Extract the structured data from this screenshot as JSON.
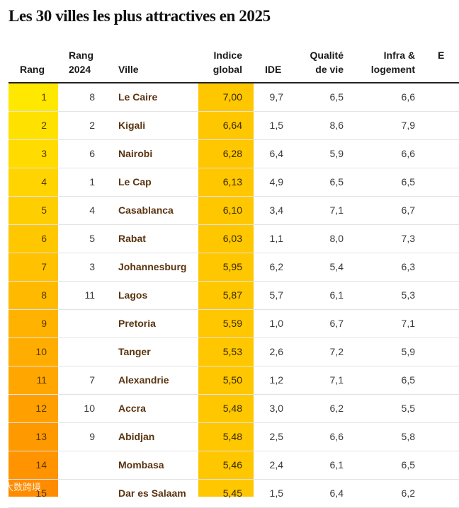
{
  "title": "Les 30 villes les plus attractives en 2025",
  "watermark": "大数跨境",
  "columns": {
    "rang": "Rang",
    "rang2024_line1": "Rang",
    "rang2024_line2": "2024",
    "ville": "Ville",
    "indice_line1": "Indice",
    "indice_line2": "global",
    "ide": "IDE",
    "qualite_line1": "Qualité",
    "qualite_line2": "de vie",
    "infra_line1": "Infra &",
    "infra_line2": "logement",
    "next_col": "E"
  },
  "colors": {
    "rang_gradient_start": "#ffe800",
    "rang_gradient_end": "#ff8c00",
    "indice_column": "#ffc700"
  },
  "chart_data": {
    "type": "table",
    "title": "Les 30 villes les plus attractives en 2025",
    "headers": [
      "Rang",
      "Rang 2024",
      "Ville",
      "Indice global",
      "IDE",
      "Qualité de vie",
      "Infra & logement"
    ],
    "rows": [
      {
        "rang": "1",
        "rang2024": "8",
        "ville": "Le Caire",
        "indice": "7,00",
        "ide": "9,7",
        "qualite": "6,5",
        "infra": "6,6"
      },
      {
        "rang": "2",
        "rang2024": "2",
        "ville": "Kigali",
        "indice": "6,64",
        "ide": "1,5",
        "qualite": "8,6",
        "infra": "7,9"
      },
      {
        "rang": "3",
        "rang2024": "6",
        "ville": "Nairobi",
        "indice": "6,28",
        "ide": "6,4",
        "qualite": "5,9",
        "infra": "6,6"
      },
      {
        "rang": "4",
        "rang2024": "1",
        "ville": "Le Cap",
        "indice": "6,13",
        "ide": "4,9",
        "qualite": "6,5",
        "infra": "6,5"
      },
      {
        "rang": "5",
        "rang2024": "4",
        "ville": "Casablanca",
        "indice": "6,10",
        "ide": "3,4",
        "qualite": "7,1",
        "infra": "6,7"
      },
      {
        "rang": "6",
        "rang2024": "5",
        "ville": "Rabat",
        "indice": "6,03",
        "ide": "1,1",
        "qualite": "8,0",
        "infra": "7,3"
      },
      {
        "rang": "7",
        "rang2024": "3",
        "ville": "Johannesburg",
        "indice": "5,95",
        "ide": "6,2",
        "qualite": "5,4",
        "infra": "6,3"
      },
      {
        "rang": "8",
        "rang2024": "11",
        "ville": "Lagos",
        "indice": "5,87",
        "ide": "5,7",
        "qualite": "6,1",
        "infra": "5,3"
      },
      {
        "rang": "9",
        "rang2024": "",
        "ville": "Pretoria",
        "indice": "5,59",
        "ide": "1,0",
        "qualite": "6,7",
        "infra": "7,1"
      },
      {
        "rang": "10",
        "rang2024": "",
        "ville": "Tanger",
        "indice": "5,53",
        "ide": "2,6",
        "qualite": "7,2",
        "infra": "5,9"
      },
      {
        "rang": "11",
        "rang2024": "7",
        "ville": "Alexandrie",
        "indice": "5,50",
        "ide": "1,2",
        "qualite": "7,1",
        "infra": "6,5"
      },
      {
        "rang": "12",
        "rang2024": "10",
        "ville": "Accra",
        "indice": "5,48",
        "ide": "3,0",
        "qualite": "6,2",
        "infra": "5,5"
      },
      {
        "rang": "13",
        "rang2024": "9",
        "ville": "Abidjan",
        "indice": "5,48",
        "ide": "2,5",
        "qualite": "6,6",
        "infra": "5,8"
      },
      {
        "rang": "14",
        "rang2024": "",
        "ville": "Mombasa",
        "indice": "5,46",
        "ide": "2,4",
        "qualite": "6,1",
        "infra": "6,5"
      },
      {
        "rang": "15",
        "rang2024": "",
        "ville": "Dar es Salaam",
        "indice": "5,45",
        "ide": "1,5",
        "qualite": "6,4",
        "infra": "6,2"
      }
    ]
  }
}
